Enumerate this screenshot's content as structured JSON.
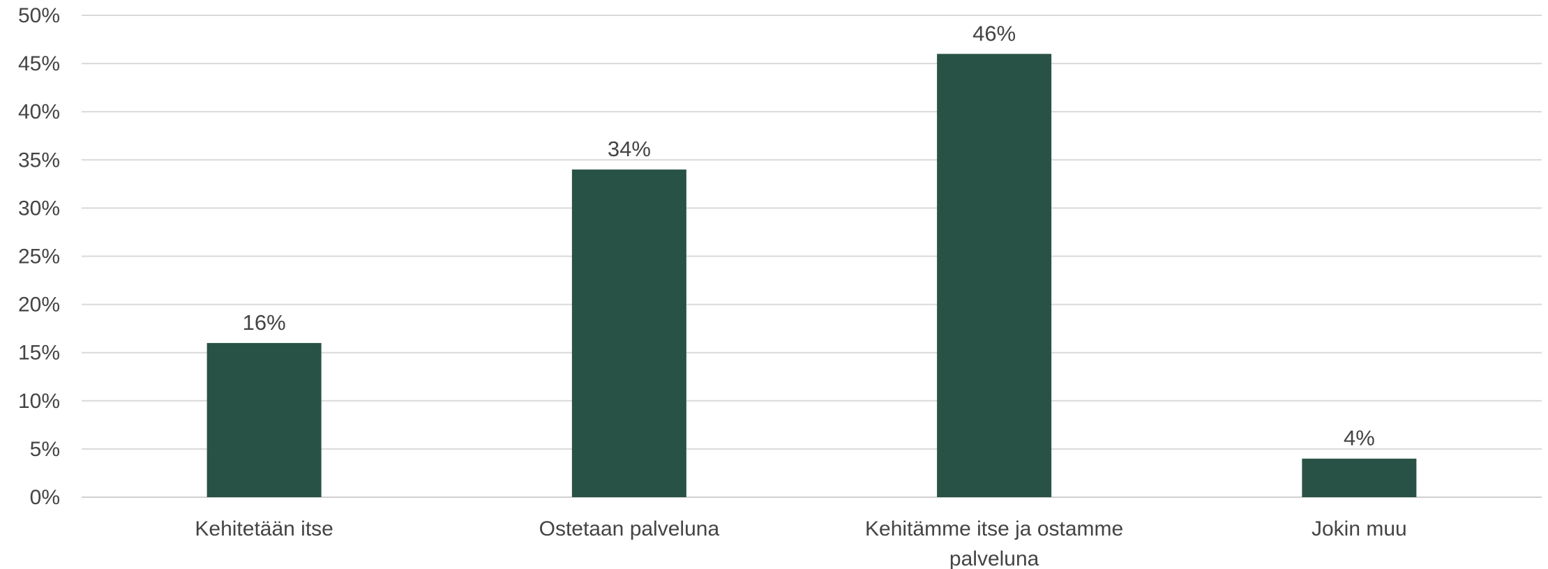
{
  "chart_data": {
    "type": "bar",
    "categories": [
      [
        "Kehitetään itse"
      ],
      [
        "Ostetaan palveluna"
      ],
      [
        "Kehitämme itse ja ostamme",
        "palveluna"
      ],
      [
        "Jokin muu"
      ]
    ],
    "values": [
      16,
      34,
      46,
      4
    ],
    "data_labels": [
      "16%",
      "34%",
      "46%",
      "4%"
    ],
    "y_ticks": [
      "0%",
      "5%",
      "10%",
      "15%",
      "20%",
      "25%",
      "30%",
      "35%",
      "40%",
      "45%",
      "50%"
    ],
    "ylim": [
      0,
      50
    ],
    "grid": true,
    "legend": "none",
    "bar_color": "#285245"
  }
}
